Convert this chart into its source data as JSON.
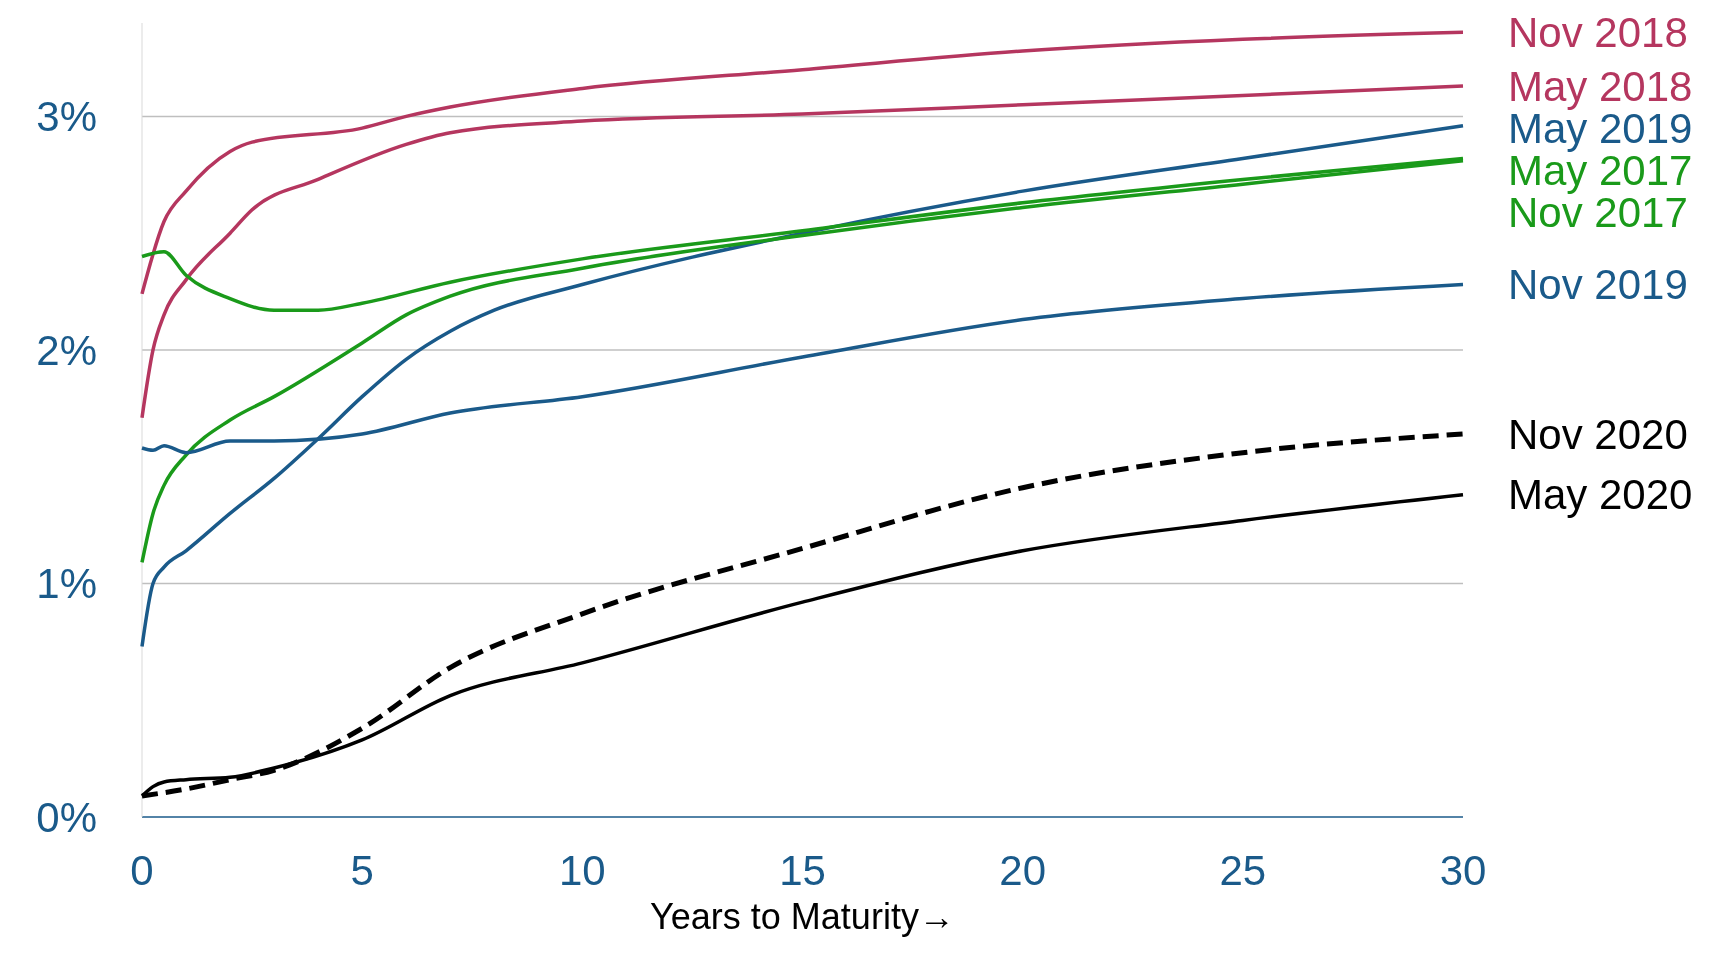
{
  "chart_data": {
    "type": "line",
    "xlabel": "Years to Maturity→",
    "xlim": [
      0,
      30
    ],
    "xticks": [
      0,
      5,
      10,
      15,
      20,
      25,
      30
    ],
    "ylim": [
      0,
      3.4
    ],
    "yticks": [
      {
        "value": 0,
        "label": "0%"
      },
      {
        "value": 1,
        "label": "1%"
      },
      {
        "value": 2,
        "label": "2%"
      },
      {
        "value": 3,
        "label": "3%"
      }
    ],
    "grid": "y",
    "series": [
      {
        "name": "Nov 2018",
        "color": "#b5365f",
        "x": [
          0,
          0.5,
          1,
          2,
          2.5,
          5,
          6,
          7,
          10,
          15,
          20,
          25,
          30
        ],
        "values": [
          2.24,
          2.55,
          2.68,
          2.85,
          2.89,
          2.95,
          3.0,
          3.04,
          3.12,
          3.2,
          3.28,
          3.33,
          3.36
        ]
      },
      {
        "name": "May 2018",
        "color": "#b5365f",
        "x": [
          0,
          0.25,
          0.5,
          1,
          2,
          2.5,
          4,
          6,
          7,
          10,
          15,
          20,
          25,
          30
        ],
        "values": [
          1.71,
          2.0,
          2.15,
          2.3,
          2.5,
          2.6,
          2.73,
          2.88,
          2.93,
          2.98,
          3.01,
          3.05,
          3.09,
          3.13
        ]
      },
      {
        "name": "May 2019",
        "color": "#1a5a8a",
        "x": [
          0,
          0.25,
          0.5,
          1,
          2,
          3,
          4,
          5,
          6,
          7,
          8,
          10,
          15,
          20,
          25,
          30
        ],
        "values": [
          0.73,
          1.0,
          1.07,
          1.14,
          1.3,
          1.45,
          1.62,
          1.8,
          1.96,
          2.08,
          2.17,
          2.28,
          2.5,
          2.68,
          2.82,
          2.96
        ]
      },
      {
        "name": "May 2017",
        "color": "#1a9a1a",
        "x": [
          0,
          0.5,
          1,
          2,
          3,
          4,
          5,
          7,
          10,
          15,
          20,
          25,
          30
        ],
        "values": [
          2.4,
          2.42,
          2.32,
          2.22,
          2.17,
          2.17,
          2.2,
          2.29,
          2.39,
          2.51,
          2.63,
          2.73,
          2.82
        ]
      },
      {
        "name": "Nov 2017",
        "color": "#1a9a1a",
        "x": [
          0,
          0.25,
          0.5,
          1,
          2,
          3,
          5,
          6,
          7,
          10,
          15,
          20,
          25,
          30
        ],
        "values": [
          1.09,
          1.3,
          1.42,
          1.55,
          1.7,
          1.8,
          2.03,
          2.15,
          2.23,
          2.35,
          2.49,
          2.61,
          2.71,
          2.81
        ]
      },
      {
        "name": "Nov 2019",
        "color": "#1a5a8a",
        "x": [
          0,
          0.25,
          0.5,
          1,
          2,
          3,
          5,
          7,
          10,
          15,
          20,
          25,
          30
        ],
        "values": [
          1.58,
          1.57,
          1.59,
          1.56,
          1.61,
          1.61,
          1.64,
          1.73,
          1.8,
          1.97,
          2.13,
          2.22,
          2.28
        ]
      },
      {
        "name": "Nov 2020",
        "color": "#000000",
        "line_style": "dashed",
        "x": [
          0,
          1,
          2,
          3,
          5,
          7,
          10,
          15,
          20,
          25,
          30
        ],
        "values": [
          0.09,
          0.12,
          0.16,
          0.2,
          0.38,
          0.64,
          0.87,
          1.15,
          1.41,
          1.56,
          1.64
        ]
      },
      {
        "name": "May 2020",
        "color": "#000000",
        "x": [
          0,
          0.25,
          0.5,
          1,
          2,
          3,
          5,
          7,
          10,
          15,
          20,
          25,
          30
        ],
        "values": [
          0.09,
          0.13,
          0.15,
          0.16,
          0.17,
          0.21,
          0.33,
          0.52,
          0.66,
          0.92,
          1.14,
          1.27,
          1.38
        ]
      }
    ]
  }
}
